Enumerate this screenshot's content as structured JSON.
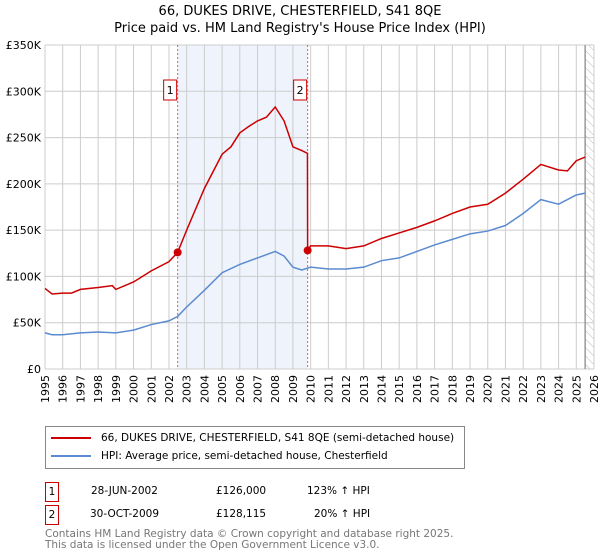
{
  "chart_data": {
    "type": "line",
    "title": "66, DUKES DRIVE, CHESTERFIELD, S41 8QE",
    "subtitle": "Price paid vs. HM Land Registry's House Price Index (HPI)",
    "ylim": [
      0,
      350000
    ],
    "xlim": [
      1995,
      2026
    ],
    "yticks": [
      {
        "v": 0,
        "l": "£0"
      },
      {
        "v": 50000,
        "l": "£50K"
      },
      {
        "v": 100000,
        "l": "£100K"
      },
      {
        "v": 150000,
        "l": "£150K"
      },
      {
        "v": 200000,
        "l": "£200K"
      },
      {
        "v": 250000,
        "l": "£250K"
      },
      {
        "v": 300000,
        "l": "£300K"
      },
      {
        "v": 350000,
        "l": "£350K"
      }
    ],
    "xticks": [
      "1995",
      "1996",
      "1997",
      "1998",
      "1999",
      "2000",
      "2001",
      "2002",
      "2003",
      "2004",
      "2005",
      "2006",
      "2007",
      "2008",
      "2009",
      "2010",
      "2011",
      "2012",
      "2013",
      "2014",
      "2015",
      "2016",
      "2017",
      "2018",
      "2019",
      "2020",
      "2021",
      "2022",
      "2023",
      "2024",
      "2025",
      "2026"
    ],
    "series": [
      {
        "name": "66, DUKES DRIVE, CHESTERFIELD, S41 8QE (semi-detached house)",
        "color": "#cc0000",
        "x": [
          1995,
          1995.4,
          1996,
          1996.5,
          1997,
          1998,
          1998.8,
          1999,
          2000,
          2001,
          2002,
          2002.49,
          2003,
          2004,
          2005,
          2005.5,
          2006,
          2006.5,
          2007,
          2007.5,
          2008,
          2008.5,
          2009,
          2009.5,
          2009.82,
          2009.83,
          2010,
          2011,
          2012,
          2013,
          2014,
          2015,
          2016,
          2017,
          2018,
          2019,
          2020,
          2021,
          2022,
          2023,
          2024,
          2024.5,
          2025,
          2025.5
        ],
        "y": [
          87000,
          81000,
          82000,
          82000,
          86000,
          88000,
          90000,
          86000,
          94000,
          106000,
          116000,
          126000,
          150000,
          195000,
          232000,
          240000,
          255000,
          262000,
          268000,
          272000,
          283000,
          268000,
          240000,
          236000,
          233000,
          128115,
          133000,
          133000,
          130000,
          133000,
          141000,
          147000,
          153000,
          160000,
          168000,
          175000,
          178000,
          190000,
          205000,
          221000,
          215000,
          214000,
          225000,
          229000
        ]
      },
      {
        "name": "HPI: Average price, semi-detached house, Chesterfield",
        "color": "#5b8bd0",
        "x": [
          1995,
          1995.4,
          1996,
          1997,
          1998,
          1999,
          2000,
          2001,
          2002,
          2002.5,
          2003,
          2004,
          2005,
          2006,
          2007,
          2008,
          2008.5,
          2009,
          2009.5,
          2010,
          2011,
          2012,
          2013,
          2014,
          2015,
          2016,
          2017,
          2018,
          2019,
          2020,
          2021,
          2022,
          2023,
          2024,
          2025,
          2025.5
        ],
        "y": [
          39000,
          37000,
          37000,
          39000,
          40000,
          39000,
          42000,
          48000,
          52000,
          57000,
          67000,
          85000,
          104000,
          113000,
          120000,
          127000,
          122000,
          110000,
          107000,
          110000,
          108000,
          108000,
          110000,
          117000,
          120000,
          127000,
          134000,
          140000,
          146000,
          149000,
          155000,
          168000,
          183000,
          178000,
          188000,
          190000
        ]
      }
    ],
    "annotations": [
      {
        "label": "1",
        "x": 2002.49,
        "y": 126000
      },
      {
        "label": "2",
        "x": 2009.83,
        "y": 128115
      }
    ],
    "shaded_range": [
      2002.49,
      2009.83
    ],
    "hatched_after": 2025.5,
    "legend": "bottom"
  },
  "sales": [
    {
      "n": "1",
      "date": "28-JUN-2002",
      "price": "£126,000",
      "hpi": "123% ↑ HPI"
    },
    {
      "n": "2",
      "date": "30-OCT-2009",
      "price": "£128,115",
      "hpi": "20% ↑ HPI"
    }
  ],
  "footer": [
    "Contains HM Land Registry data © Crown copyright and database right 2025.",
    "This data is licensed under the Open Government Licence v3.0."
  ]
}
